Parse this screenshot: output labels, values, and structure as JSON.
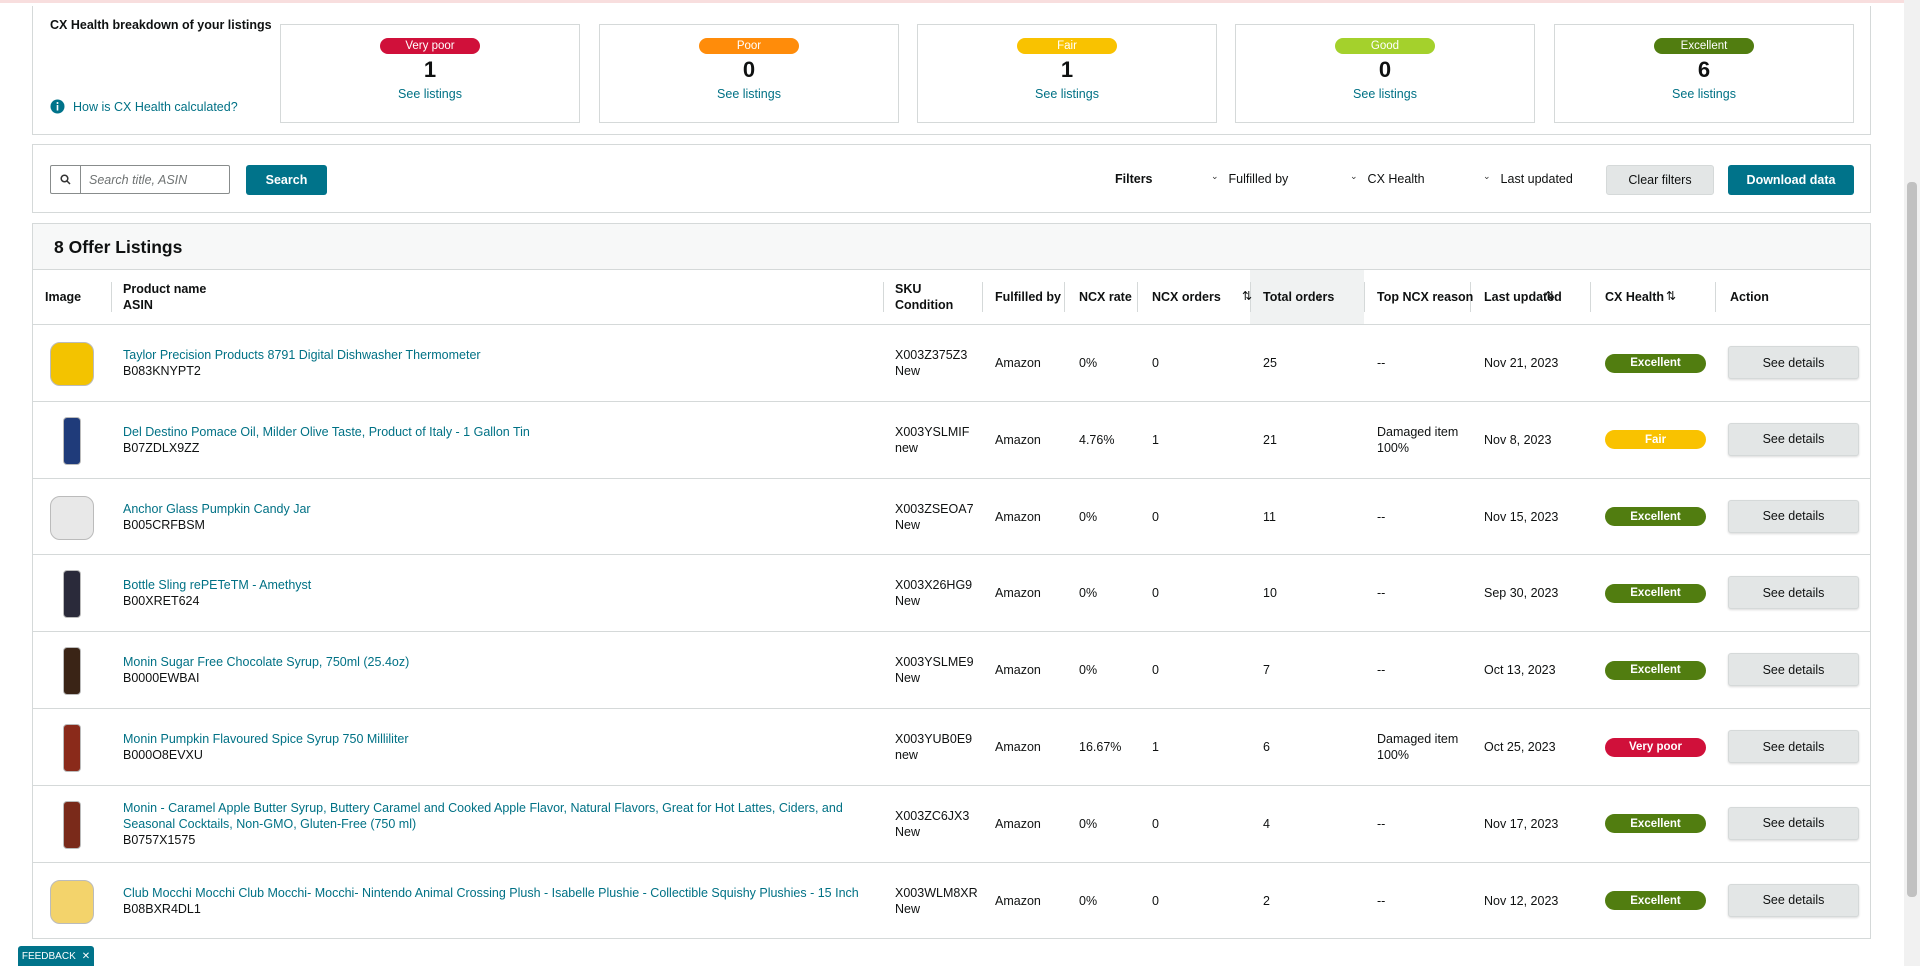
{
  "summary": {
    "title": "CX Health breakdown of your listings",
    "help_link": "How is CX Health calculated?",
    "cards": [
      {
        "label": "Very poor",
        "count": 1,
        "link": "See listings",
        "color": "#d0103a"
      },
      {
        "label": "Poor",
        "count": 0,
        "link": "See listings",
        "color": "#ff8c0a"
      },
      {
        "label": "Fair",
        "count": 1,
        "link": "See listings",
        "color": "#f9c200"
      },
      {
        "label": "Good",
        "count": 0,
        "link": "See listings",
        "color": "#a4d12c"
      },
      {
        "label": "Excellent",
        "count": 6,
        "link": "See listings",
        "color": "#517d10"
      }
    ]
  },
  "toolbar": {
    "search_placeholder": "Search title, ASIN",
    "search_button": "Search",
    "filters_label": "Filters",
    "filters": [
      "Fulfilled by",
      "CX Health",
      "Last updated"
    ],
    "clear_button": "Clear filters",
    "download_button": "Download data"
  },
  "listings": {
    "title": "8 Offer Listings",
    "columns": [
      [
        "Image"
      ],
      [
        "Product name",
        "ASIN"
      ],
      [
        "SKU",
        "Condition"
      ],
      [
        "Fulfilled by"
      ],
      [
        "NCX rate"
      ],
      [
        "NCX orders"
      ],
      [
        "Total orders"
      ],
      [
        "Top NCX reason"
      ],
      [
        "Last updated"
      ],
      [
        "CX Health"
      ],
      [
        "Action"
      ]
    ],
    "rows": [
      {
        "product": "Taylor Precision Products 8791 Digital Dishwasher Thermometer",
        "asin": "B083KNYPT2",
        "sku": "X003Z375Z3",
        "condition": "New",
        "fulfilled_by": "Amazon",
        "ncx_rate": "0%",
        "ncx_orders": 0,
        "total_orders": 25,
        "top_ncx_reason": [
          "--"
        ],
        "last_updated": "Nov 21, 2023",
        "cx_health": "Excellent",
        "action": "See details"
      },
      {
        "product": "Del Destino Pomace Oil, Milder Olive Taste, Product of Italy - 1 Gallon Tin",
        "asin": "B07ZDLX9ZZ",
        "sku": "X003YSLMIF",
        "condition": "new",
        "fulfilled_by": "Amazon",
        "ncx_rate": "4.76%",
        "ncx_orders": 1,
        "total_orders": 21,
        "top_ncx_reason": [
          "Damaged item",
          "100%"
        ],
        "last_updated": "Nov 8, 2023",
        "cx_health": "Fair",
        "action": "See details"
      },
      {
        "product": "Anchor Glass Pumpkin Candy Jar",
        "asin": "B005CRFBSM",
        "sku": "X003ZSEOA7",
        "condition": "New",
        "fulfilled_by": "Amazon",
        "ncx_rate": "0%",
        "ncx_orders": 0,
        "total_orders": 11,
        "top_ncx_reason": [
          "--"
        ],
        "last_updated": "Nov 15, 2023",
        "cx_health": "Excellent",
        "action": "See details"
      },
      {
        "product": "Bottle Sling rePETeTM - Amethyst",
        "asin": "B00XRET624",
        "sku": "X003X26HG9",
        "condition": "New",
        "fulfilled_by": "Amazon",
        "ncx_rate": "0%",
        "ncx_orders": 0,
        "total_orders": 10,
        "top_ncx_reason": [
          "--"
        ],
        "last_updated": "Sep 30, 2023",
        "cx_health": "Excellent",
        "action": "See details"
      },
      {
        "product": "Monin Sugar Free Chocolate Syrup, 750ml (25.4oz)",
        "asin": "B0000EWBAI",
        "sku": "X003YSLME9",
        "condition": "New",
        "fulfilled_by": "Amazon",
        "ncx_rate": "0%",
        "ncx_orders": 0,
        "total_orders": 7,
        "top_ncx_reason": [
          "--"
        ],
        "last_updated": "Oct 13, 2023",
        "cx_health": "Excellent",
        "action": "See details"
      },
      {
        "product": "Monin Pumpkin Flavoured Spice Syrup 750 Milliliter",
        "asin": "B000O8EVXU",
        "sku": "X003YUB0E9",
        "condition": "new",
        "fulfilled_by": "Amazon",
        "ncx_rate": "16.67%",
        "ncx_orders": 1,
        "total_orders": 6,
        "top_ncx_reason": [
          "Damaged item",
          "100%"
        ],
        "last_updated": "Oct 25, 2023",
        "cx_health": "Very poor",
        "action": "See details"
      },
      {
        "product": "Monin - Caramel Apple Butter Syrup, Buttery Caramel and Cooked Apple Flavor, Natural Flavors, Great for Hot Lattes, Ciders, and Seasonal Cocktails, Non-GMO, Gluten-Free (750 ml)",
        "asin": "B0757X1575",
        "sku": "X003ZC6JX3",
        "condition": "New",
        "fulfilled_by": "Amazon",
        "ncx_rate": "0%",
        "ncx_orders": 0,
        "total_orders": 4,
        "top_ncx_reason": [
          "--"
        ],
        "last_updated": "Nov 17, 2023",
        "cx_health": "Excellent",
        "action": "See details"
      },
      {
        "product": "Club Mocchi Mocchi Club Mocchi- Mocchi- Nintendo Animal Crossing Plush - Isabelle Plushie - Collectible Squishy Plushies - 15 Inch",
        "asin": "B08BXR4DL1",
        "sku": "X003WLM8XR",
        "condition": "New",
        "fulfilled_by": "Amazon",
        "ncx_rate": "0%",
        "ncx_orders": 0,
        "total_orders": 2,
        "top_ncx_reason": [
          "--"
        ],
        "last_updated": "Nov 12, 2023",
        "cx_health": "Excellent",
        "action": "See details"
      }
    ]
  },
  "feedback": "FEEDBACK"
}
